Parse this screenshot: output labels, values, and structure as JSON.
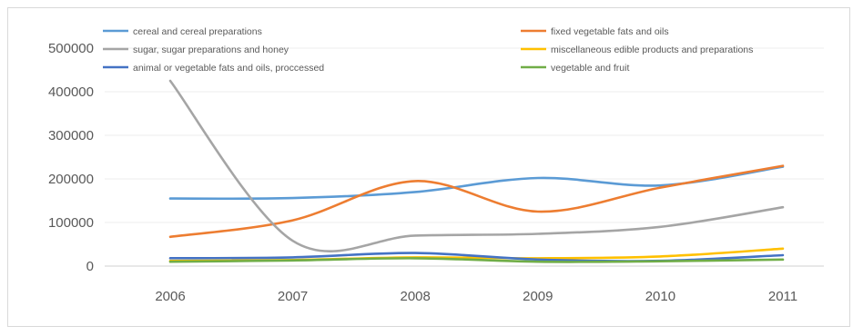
{
  "chart_data": {
    "type": "line",
    "title": "",
    "xlabel": "",
    "ylabel": "",
    "categories": [
      "2006",
      "2007",
      "2008",
      "2009",
      "2010",
      "2011"
    ],
    "ylim": [
      0,
      500000
    ],
    "yticks": [
      0,
      100000,
      200000,
      300000,
      400000,
      500000
    ],
    "grid": true,
    "legend_position": "top",
    "series": [
      {
        "name": "cereal and cereal preparations",
        "color": "#5b9bd5",
        "values": [
          155000,
          156000,
          170000,
          202000,
          185000,
          228000
        ]
      },
      {
        "name": "fixed vegetable fats and oils",
        "color": "#ed7d31",
        "values": [
          67000,
          105000,
          195000,
          125000,
          180000,
          230000
        ]
      },
      {
        "name": "sugar, sugar preparations and honey",
        "color": "#a5a5a5",
        "values": [
          425000,
          58000,
          70000,
          74000,
          90000,
          135000
        ]
      },
      {
        "name": "miscellaneous edible products and preparations",
        "color": "#ffc000",
        "values": [
          12000,
          14000,
          20000,
          18000,
          22000,
          40000
        ]
      },
      {
        "name": "animal or vegetable fats and oils, proccessed",
        "color": "#4472c4",
        "values": [
          18000,
          20000,
          30000,
          15000,
          12000,
          25000
        ]
      },
      {
        "name": "vegetable and fruit",
        "color": "#70ad47",
        "values": [
          10000,
          13000,
          18000,
          10000,
          11000,
          15000
        ]
      }
    ]
  }
}
